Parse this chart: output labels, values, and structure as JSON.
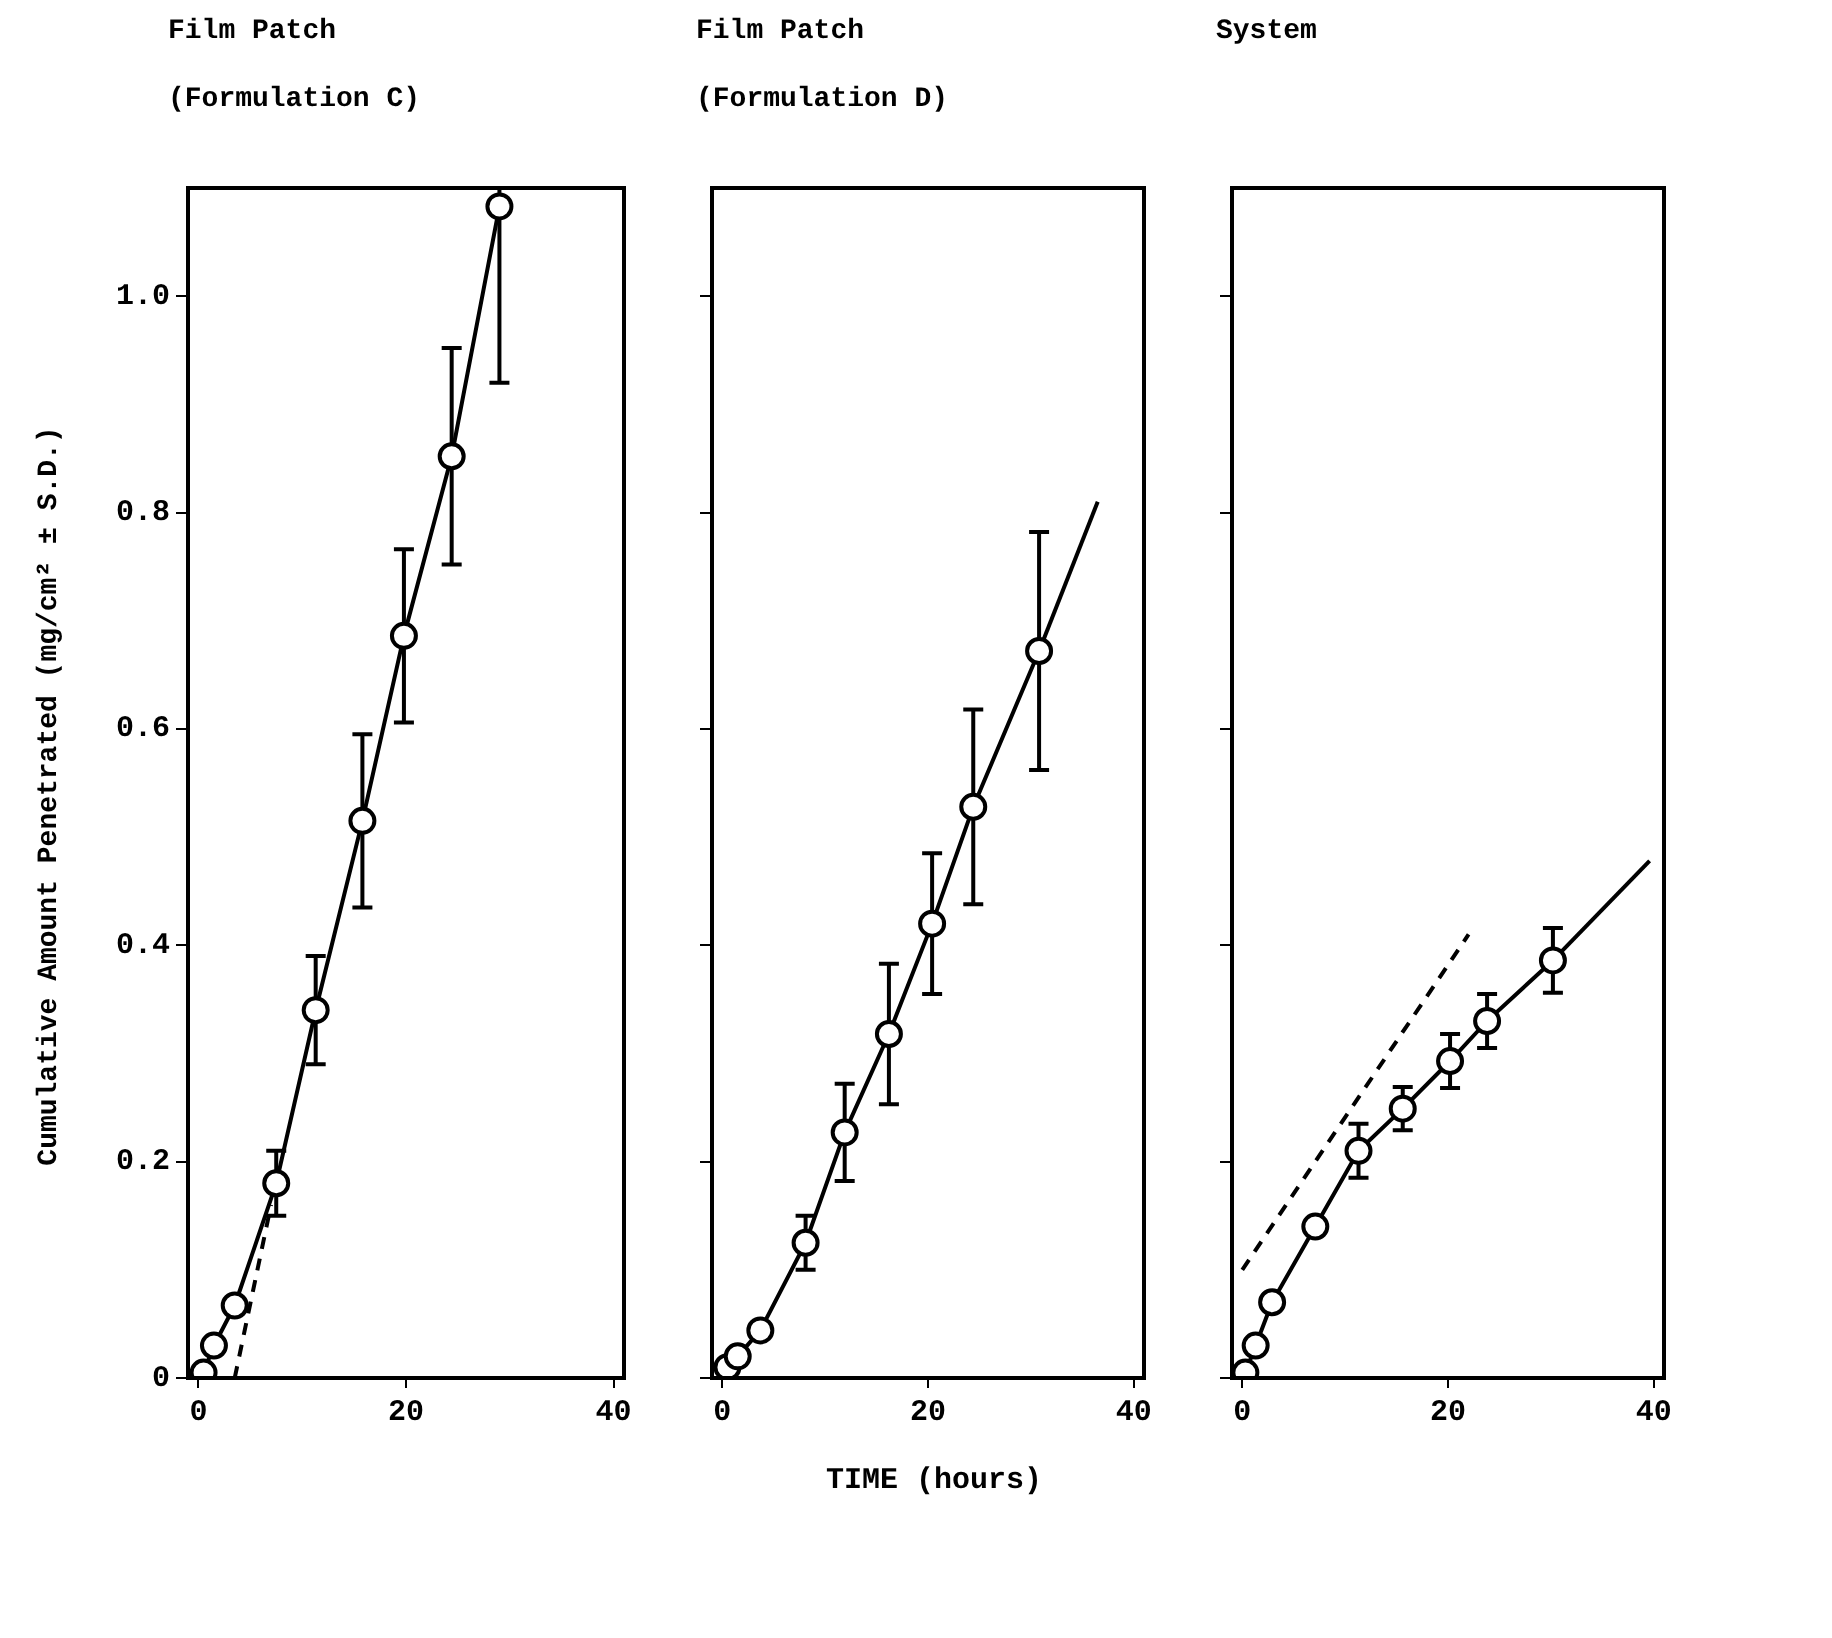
{
  "chart_data": [
    {
      "type": "line",
      "title": "Film Patch",
      "subtitle": "(Formulation C)",
      "ylabel": "Cumulative Amount Penetrated (mg/cm² ± S.D.)",
      "xlim": [
        -1,
        41
      ],
      "ylim": [
        0,
        1.1
      ],
      "xticks": [
        0,
        20,
        40
      ],
      "yticks": [
        0,
        0.2,
        0.4,
        0.6,
        0.8,
        {
          "value": 1,
          "label": "1.0"
        }
      ],
      "series": [
        {
          "marker": "circle",
          "color": "#000000",
          "x": [
            0.5,
            1.5,
            3.5,
            7.5,
            11.3,
            15.8,
            19.8,
            24.4,
            29
          ],
          "values": [
            0.005,
            0.03,
            0.067,
            0.18,
            0.34,
            0.515,
            0.686,
            0.852,
            1.083
          ],
          "errors": [
            null,
            null,
            null,
            0.03,
            0.05,
            0.08,
            0.08,
            0.1,
            [
              0.92,
              1.1
            ]
          ]
        },
        {
          "marker": "none",
          "line_style": "dashed",
          "color": "#000000",
          "x": [
            3.5,
            7
          ],
          "values": [
            0,
            0.16
          ]
        }
      ]
    },
    {
      "type": "line",
      "title": "Film Patch",
      "subtitle": "(Formulation D)",
      "xlabel": "TIME (hours)",
      "xlim": [
        -1,
        41
      ],
      "ylim": [
        0,
        1.1
      ],
      "xticks": [
        0,
        20,
        40
      ],
      "yticks": [
        0,
        0.2,
        0.4,
        0.6,
        0.8,
        1
      ],
      "tick_labels": "x",
      "series": [
        {
          "marker": "circle",
          "color": "#000000",
          "x": [
            0.5,
            1.5,
            3.7,
            8.1,
            11.9,
            16.2,
            20.4,
            24.4,
            30.8
          ],
          "values": [
            0.01,
            0.02,
            0.044,
            0.125,
            0.227,
            0.318,
            0.42,
            0.528,
            0.672
          ],
          "errors": [
            null,
            null,
            null,
            0.025,
            0.045,
            0.065,
            0.065,
            0.09,
            0.11
          ]
        },
        {
          "marker": "none",
          "color": "#000000",
          "x": [
            30.8,
            36.5
          ],
          "values": [
            0.672,
            0.81
          ]
        }
      ]
    },
    {
      "type": "line",
      "title": "System",
      "xlim": [
        -1,
        41
      ],
      "ylim": [
        0,
        1.1
      ],
      "xticks": [
        0,
        20,
        40
      ],
      "yticks": [
        0,
        0.2,
        0.4,
        0.6,
        0.8,
        1
      ],
      "tick_labels": "x",
      "series": [
        {
          "marker": "circle",
          "color": "#000000",
          "x": [
            0.3,
            1.3,
            2.9,
            7.1,
            11.3,
            15.6,
            20.2,
            23.8,
            30.2
          ],
          "values": [
            0.005,
            0.03,
            0.07,
            0.14,
            0.21,
            0.249,
            0.293,
            0.33,
            0.386
          ],
          "errors": [
            null,
            null,
            null,
            null,
            0.025,
            0.02,
            0.025,
            0.025,
            0.03
          ]
        },
        {
          "marker": "none",
          "color": "#000000",
          "x": [
            30.2,
            39.6
          ],
          "values": [
            0.386,
            0.478
          ]
        },
        {
          "marker": "none",
          "line_style": "dashed",
          "color": "#000000",
          "x": [
            0,
            22
          ],
          "values": [
            0.1,
            0.41
          ]
        }
      ]
    }
  ]
}
